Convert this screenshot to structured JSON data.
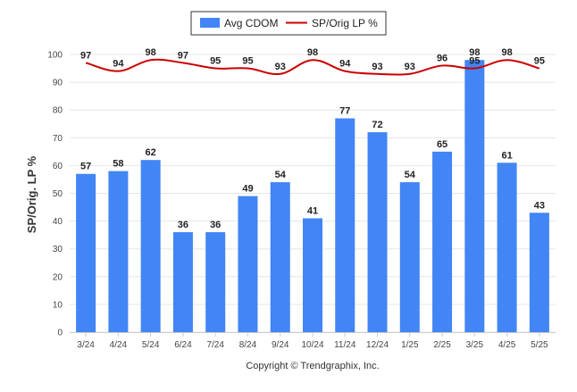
{
  "chart_data": {
    "type": "bar",
    "categories": [
      "3/24",
      "4/24",
      "5/24",
      "6/24",
      "7/24",
      "8/24",
      "9/24",
      "10/24",
      "11/24",
      "12/24",
      "1/25",
      "2/25",
      "3/25",
      "4/25",
      "5/25"
    ],
    "series": [
      {
        "name": "Avg CDOM",
        "type": "bar",
        "color": "#4285f4",
        "values": [
          57,
          58,
          62,
          36,
          36,
          49,
          54,
          41,
          77,
          72,
          54,
          65,
          98,
          61,
          43
        ]
      },
      {
        "name": "SP/Orig LP %",
        "type": "line",
        "color": "#cc0000",
        "values": [
          97,
          94,
          98,
          97,
          95,
          95,
          93,
          98,
          94,
          93,
          93,
          96,
          95,
          98,
          95
        ]
      }
    ],
    "ylabel": "SP/Orig. LP %",
    "ylim": [
      0,
      100
    ],
    "yticks": [
      0,
      10,
      20,
      30,
      40,
      50,
      60,
      70,
      80,
      90,
      100
    ],
    "grid": true,
    "legend_position": "top-center"
  },
  "footer": {
    "copyright": "Copyright © Trendgraphix, Inc."
  }
}
